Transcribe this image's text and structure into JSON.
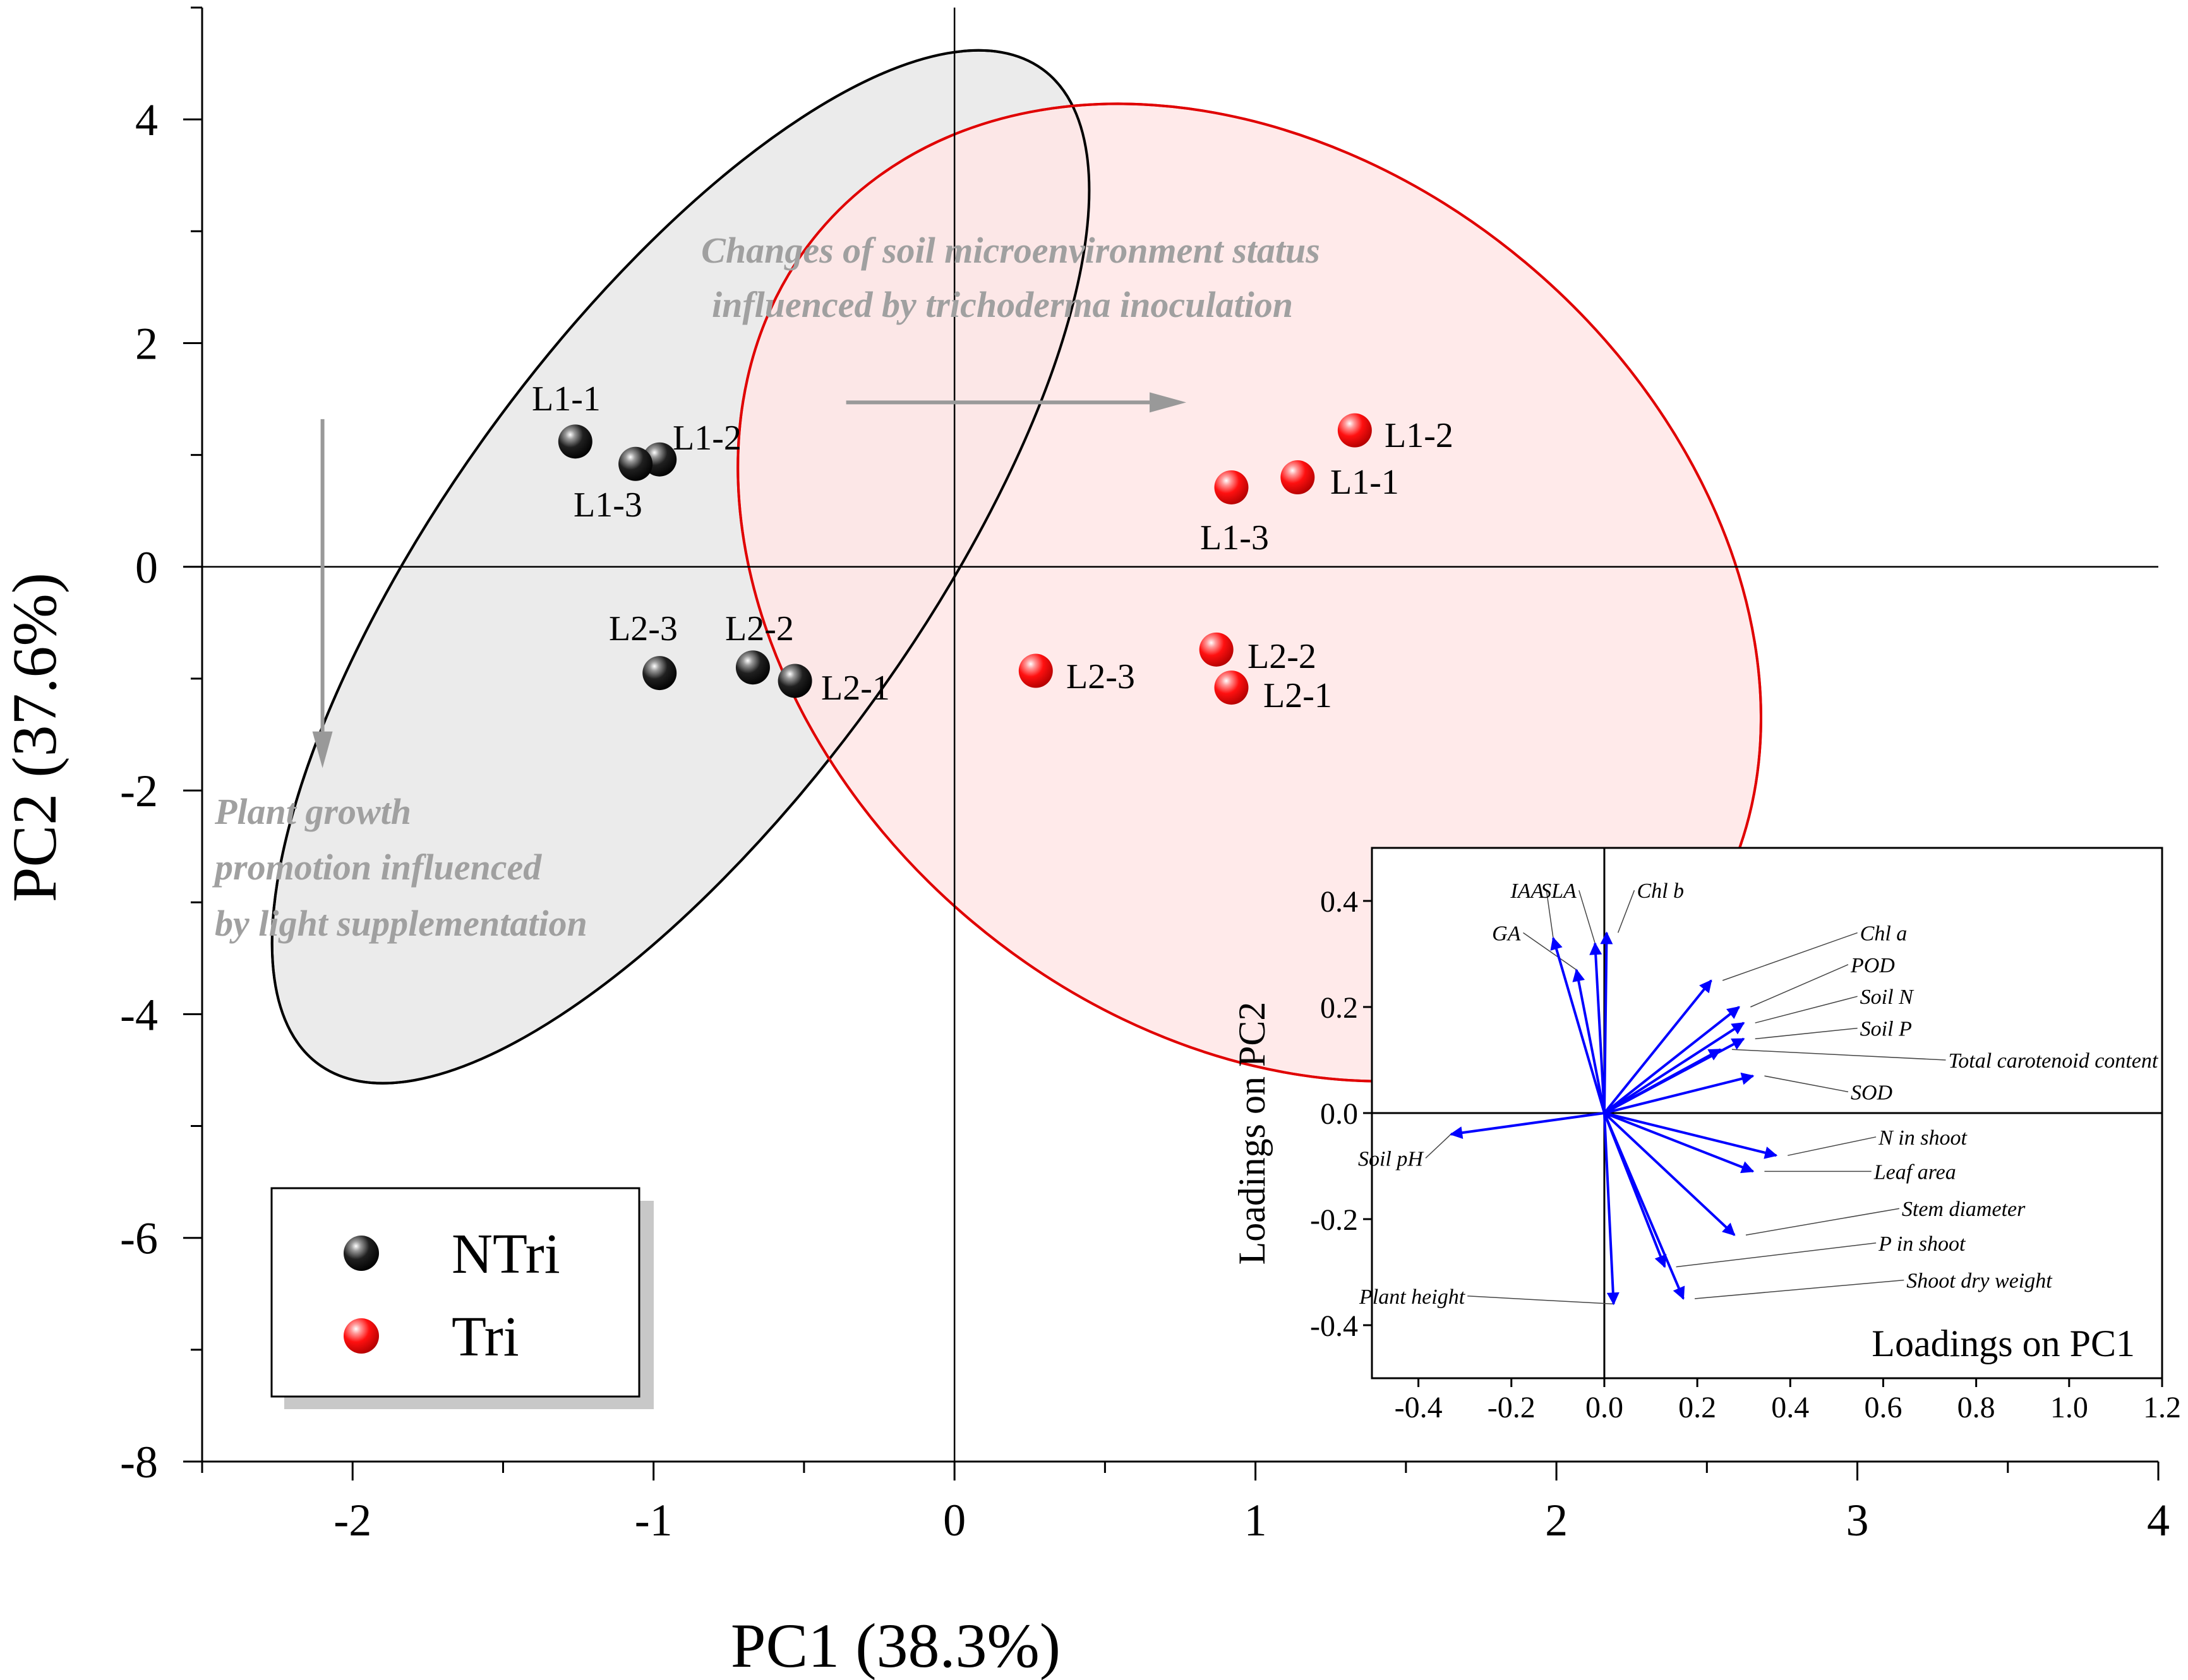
{
  "chart_data": [
    {
      "type": "scatter",
      "title": "",
      "xlabel": "PC1 (38.3%)",
      "ylabel": "PC2 (37.6%)",
      "xlim": [
        -2.5,
        4.0
      ],
      "ylim": [
        -8,
        5
      ],
      "x_ticks": [
        -2,
        -1,
        0,
        1,
        2,
        3,
        4
      ],
      "x_tick_labels": [
        "-2",
        "-1",
        "0",
        "1",
        "2",
        "3",
        "4"
      ],
      "y_ticks": [
        -8,
        -6,
        -4,
        -2,
        0,
        2,
        4
      ],
      "y_tick_labels": [
        "-8",
        "-6",
        "-4",
        "-2",
        "0",
        "2",
        "4"
      ],
      "series": [
        {
          "name": "NTri",
          "color": "#000000",
          "points": [
            {
              "label": "L1-1",
              "x": -1.26,
              "y": 1.12
            },
            {
              "label": "L1-2",
              "x": -0.98,
              "y": 0.96
            },
            {
              "label": "L1-3",
              "x": -1.06,
              "y": 0.92
            },
            {
              "label": "L2-3",
              "x": -0.98,
              "y": -0.95
            },
            {
              "label": "L2-2",
              "x": -0.67,
              "y": -0.9
            },
            {
              "label": "L2-1",
              "x": -0.53,
              "y": -1.02
            }
          ]
        },
        {
          "name": "Tri",
          "color": "#ff0000",
          "points": [
            {
              "label": "L1-2",
              "x": 1.33,
              "y": 1.22
            },
            {
              "label": "L1-1",
              "x": 1.14,
              "y": 0.8
            },
            {
              "label": "L1-3",
              "x": 0.92,
              "y": 0.71
            },
            {
              "label": "L2-3",
              "x": 0.27,
              "y": -0.93
            },
            {
              "label": "L2-2",
              "x": 0.87,
              "y": -0.74
            },
            {
              "label": "L2-1",
              "x": 0.92,
              "y": -1.08
            }
          ]
        }
      ],
      "ellipses": [
        {
          "name": "NTri",
          "fill": "#e8e8e8",
          "stroke": "#000000",
          "center": [
            -0.91,
            0.0
          ],
          "semi_major_data": 5.5,
          "semi_minor_data": 0.78,
          "angle_deg": -54
        },
        {
          "name": "Tri",
          "fill": "#ffe6e6",
          "stroke": "#e00000",
          "center": [
            0.98,
            -0.23
          ],
          "semi_major_data": 5.02,
          "semi_minor_data": 1.43,
          "angle_deg": 40
        }
      ],
      "annotations": [
        {
          "id": "soil",
          "lines": [
            "Changes of soil microenvironment status",
            "influenced by trichoderma inoculation"
          ]
        },
        {
          "id": "plant",
          "lines": [
            "Plant growth",
            "promotion influenced",
            "by light supplementation"
          ]
        }
      ],
      "arrows": [
        {
          "id": "soil-arrow",
          "from": [
            -0.36,
            1.47
          ],
          "to": [
            0.77,
            1.47
          ],
          "color": "#999999"
        },
        {
          "id": "plant-arrow",
          "from": [
            -2.1,
            1.32
          ],
          "to": [
            -2.1,
            -1.8
          ],
          "color": "#999999"
        }
      ],
      "legend": {
        "position": "bottom-left",
        "items": [
          "NTri",
          "Tri"
        ]
      }
    },
    {
      "type": "scatter",
      "title": "",
      "xlabel": "Loadings on PC1",
      "ylabel": "Loadings on PC2",
      "xlim": [
        -0.5,
        1.2
      ],
      "ylim": [
        -0.5,
        0.5
      ],
      "x_ticks": [
        -0.4,
        -0.2,
        0.0,
        0.2,
        0.4,
        0.6,
        0.8,
        1.0,
        1.2
      ],
      "x_tick_labels": [
        "-0.4",
        "-0.2",
        "0.0",
        "0.2",
        "0.4",
        "0.6",
        "0.8",
        "1.0",
        "1.2"
      ],
      "y_ticks": [
        -0.4,
        -0.2,
        0.0,
        0.2,
        0.4
      ],
      "y_tick_labels": [
        "-0.4",
        "-0.2",
        "0.0",
        "0.2",
        "0.4"
      ],
      "vector_color": "#0000ff",
      "vectors": [
        {
          "name": "IAA",
          "x": -0.11,
          "y": 0.33,
          "label_x": -0.13,
          "label_y": 0.42
        },
        {
          "name": "GA",
          "x": -0.06,
          "y": 0.27,
          "label_x": -0.18,
          "label_y": 0.34
        },
        {
          "name": "SLA",
          "x": -0.02,
          "y": 0.32,
          "label_x": -0.06,
          "label_y": 0.42
        },
        {
          "name": "Chl b",
          "x": 0.005,
          "y": 0.34,
          "label_x": 0.07,
          "label_y": 0.42
        },
        {
          "name": "Chl a",
          "x": 0.23,
          "y": 0.25,
          "label_x": 0.55,
          "label_y": 0.34
        },
        {
          "name": "POD",
          "x": 0.29,
          "y": 0.2,
          "label_x": 0.53,
          "label_y": 0.28
        },
        {
          "name": "Soil N",
          "x": 0.3,
          "y": 0.17,
          "label_x": 0.55,
          "label_y": 0.22
        },
        {
          "name": "Soil P",
          "x": 0.3,
          "y": 0.14,
          "label_x": 0.55,
          "label_y": 0.16
        },
        {
          "name": "Total carotenoid content",
          "x": 0.25,
          "y": 0.12,
          "label_x": 0.74,
          "label_y": 0.1
        },
        {
          "name": "SOD",
          "x": 0.32,
          "y": 0.07,
          "label_x": 0.53,
          "label_y": 0.04
        },
        {
          "name": "N in shoot",
          "x": 0.37,
          "y": -0.08,
          "label_x": 0.59,
          "label_y": -0.045
        },
        {
          "name": "Leaf area",
          "x": 0.32,
          "y": -0.11,
          "label_x": 0.58,
          "label_y": -0.11
        },
        {
          "name": "Stem diameter",
          "x": 0.28,
          "y": -0.23,
          "label_x": 0.64,
          "label_y": -0.18
        },
        {
          "name": "P in shoot",
          "x": 0.13,
          "y": -0.29,
          "label_x": 0.59,
          "label_y": -0.245
        },
        {
          "name": "Shoot dry weight",
          "x": 0.17,
          "y": -0.35,
          "label_x": 0.65,
          "label_y": -0.315
        },
        {
          "name": "Plant height",
          "x": 0.02,
          "y": -0.36,
          "label_x": -0.3,
          "label_y": -0.345
        },
        {
          "name": "Soil pH",
          "x": -0.33,
          "y": -0.04,
          "label_x": -0.39,
          "label_y": -0.085
        }
      ]
    }
  ]
}
